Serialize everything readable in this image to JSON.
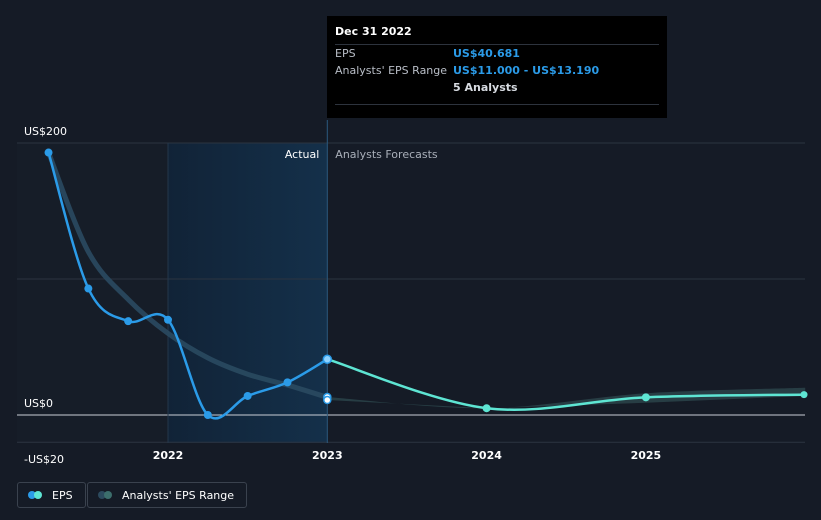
{
  "tooltip": {
    "date": "Dec 31 2022",
    "eps_label": "EPS",
    "eps_value": "US$40.681",
    "range_label": "Analysts' EPS Range",
    "range_value": "US$11.000 - US$13.190",
    "analysts": "5 Analysts"
  },
  "legend": {
    "eps": "EPS",
    "range": "Analysts' EPS Range"
  },
  "colors": {
    "background": "#151b26",
    "actual_line": "#2b9be8",
    "forecast_line": "#5ee5d3",
    "range_band": "#2e4a4f",
    "highlight_band": "#14304a"
  },
  "chart_data": {
    "type": "line",
    "section_labels": {
      "actual": "Actual",
      "forecast": "Analysts Forecasts"
    },
    "y_axis": {
      "min": -20,
      "max": 200,
      "tick_labels": [
        "US$200",
        "US$0",
        "-US$20"
      ],
      "ticks": [
        200,
        0,
        -20
      ],
      "gridlines": [
        200,
        100,
        0,
        -20
      ]
    },
    "x_axis": {
      "tick_labels": [
        "2022",
        "2023",
        "2024",
        "2025"
      ],
      "ticks": [
        2022,
        2023,
        2024,
        2025
      ],
      "range": [
        2021.1,
        2026.0
      ]
    },
    "series": [
      {
        "kind": "actual_eps",
        "points": [
          [
            2021.25,
            193
          ],
          [
            2021.5,
            93
          ],
          [
            2021.75,
            69
          ],
          [
            2022.0,
            70
          ],
          [
            2022.25,
            0
          ],
          [
            2022.5,
            14
          ],
          [
            2022.75,
            24
          ],
          [
            2023.0,
            41
          ]
        ]
      },
      {
        "kind": "actual_trend",
        "points": [
          [
            2021.25,
            193
          ],
          [
            2021.5,
            120
          ],
          [
            2021.75,
            85
          ],
          [
            2022.0,
            60
          ],
          [
            2022.25,
            42
          ],
          [
            2022.5,
            30
          ],
          [
            2022.75,
            22
          ],
          [
            2023.0,
            13
          ]
        ]
      },
      {
        "kind": "forecast_eps",
        "points": [
          [
            2023.0,
            41
          ],
          [
            2024.0,
            5
          ],
          [
            2025.0,
            13
          ],
          [
            2026.0,
            15
          ]
        ]
      },
      {
        "kind": "forecast_range",
        "low": [
          [
            2023.0,
            11
          ],
          [
            2024.0,
            5
          ],
          [
            2025.0,
            9
          ],
          [
            2026.0,
            14
          ]
        ],
        "high": [
          [
            2023.0,
            13.19
          ],
          [
            2024.0,
            5
          ],
          [
            2025.0,
            16
          ],
          [
            2026.0,
            20
          ]
        ]
      }
    ],
    "forecast_markers": [
      [
        2023.0,
        13.19
      ],
      [
        2023.0,
        11
      ]
    ],
    "highlight_region": [
      2022.0,
      2023.0
    ],
    "actual_region_start": 2021.0,
    "grid": true,
    "legend_position": "bottom-left"
  }
}
